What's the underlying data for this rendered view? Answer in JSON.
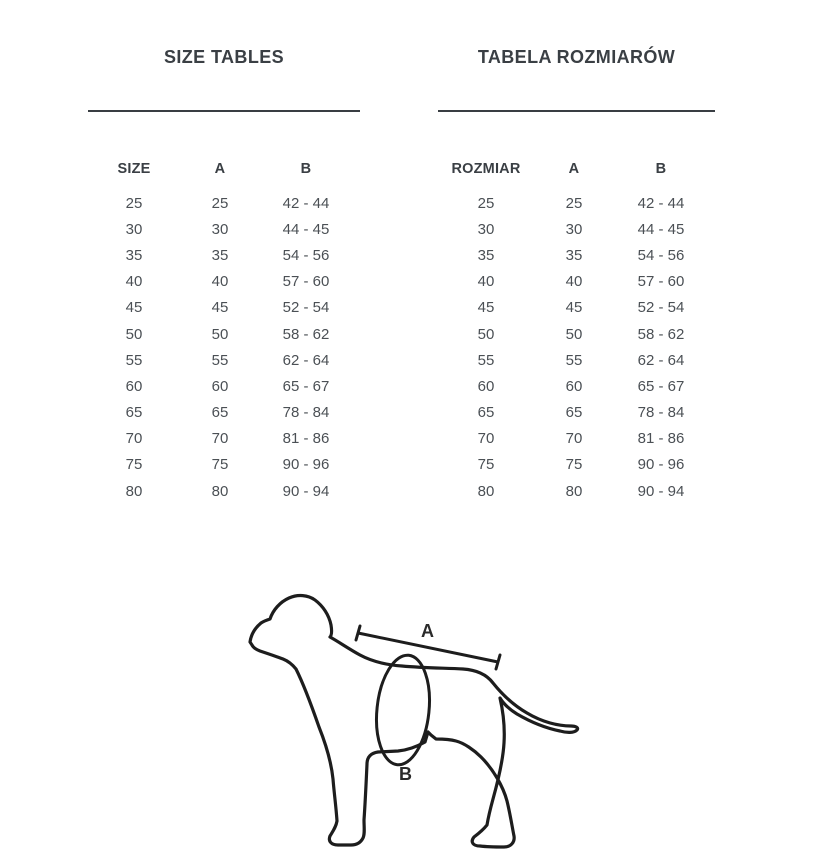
{
  "tables": {
    "en": {
      "title": "SIZE TABLES",
      "headers": [
        "SIZE",
        "A",
        "B"
      ],
      "rows": [
        [
          "25",
          "25",
          "42 - 44"
        ],
        [
          "30",
          "30",
          "44 - 45"
        ],
        [
          "35",
          "35",
          "54 - 56"
        ],
        [
          "40",
          "40",
          "57 - 60"
        ],
        [
          "45",
          "45",
          "52 - 54"
        ],
        [
          "50",
          "50",
          "58 - 62"
        ],
        [
          "55",
          "55",
          "62 - 64"
        ],
        [
          "60",
          "60",
          "65 - 67"
        ],
        [
          "65",
          "65",
          "78 - 84"
        ],
        [
          "70",
          "70",
          "81 - 86"
        ],
        [
          "75",
          "75",
          "90 - 96"
        ],
        [
          "80",
          "80",
          "90 - 94"
        ]
      ]
    },
    "pl": {
      "title": "TABELA ROZMIARÓW",
      "headers": [
        "ROZMIAR",
        "A",
        "B"
      ],
      "rows": [
        [
          "25",
          "25",
          "42 - 44"
        ],
        [
          "30",
          "30",
          "44 - 45"
        ],
        [
          "35",
          "35",
          "54 - 56"
        ],
        [
          "40",
          "40",
          "57 - 60"
        ],
        [
          "45",
          "45",
          "52 - 54"
        ],
        [
          "50",
          "50",
          "58 - 62"
        ],
        [
          "55",
          "55",
          "62 - 64"
        ],
        [
          "60",
          "60",
          "65 - 67"
        ],
        [
          "65",
          "65",
          "78 - 84"
        ],
        [
          "70",
          "70",
          "81 - 86"
        ],
        [
          "75",
          "75",
          "90 - 96"
        ],
        [
          "80",
          "80",
          "90 - 94"
        ]
      ]
    }
  },
  "diagram": {
    "label_a": "A",
    "label_b": "B"
  },
  "colors": {
    "heading": "#3a3f44",
    "data_text": "#4b5055",
    "rule": "#393e43",
    "drawing_stroke": "#1d1d1d",
    "background": "#ffffff"
  }
}
